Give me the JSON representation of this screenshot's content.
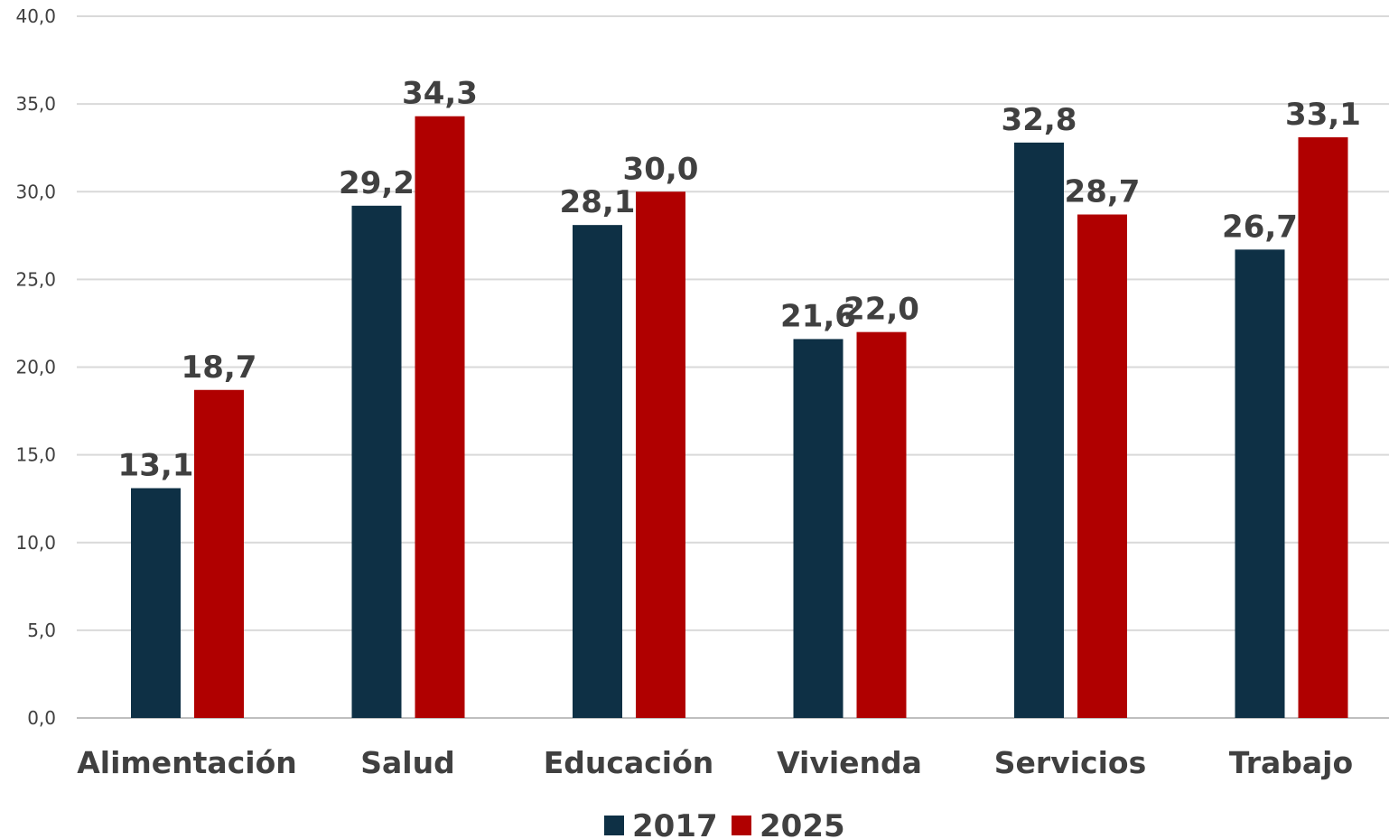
{
  "chart_data": {
    "type": "bar",
    "categories": [
      "Alimentación",
      "Salud",
      "Educación",
      "Vivienda",
      "Servicios",
      "Trabajo"
    ],
    "series": [
      {
        "name": "2017",
        "color": "#0e3045",
        "values": [
          13.1,
          29.2,
          28.1,
          21.6,
          32.8,
          26.7
        ],
        "labels": [
          "13,1",
          "29,2",
          "28,1",
          "21,6",
          "32,8",
          "26,7"
        ]
      },
      {
        "name": "2025",
        "color": "#b00000",
        "values": [
          18.7,
          34.3,
          30.0,
          22.0,
          28.7,
          33.1
        ],
        "labels": [
          "18,7",
          "34,3",
          "30,0",
          "22,0",
          "28,7",
          "33,1"
        ]
      }
    ],
    "ylim": [
      0,
      40
    ],
    "yticks": [
      0,
      5,
      10,
      15,
      20,
      25,
      30,
      35,
      40
    ],
    "ytick_labels": [
      "0,0",
      "5,0",
      "10,0",
      "15,0",
      "20,0",
      "25,0",
      "30,0",
      "35,0",
      "40,0"
    ],
    "grid": true,
    "legend_position": "bottom-center",
    "title": "",
    "xlabel": "",
    "ylabel": ""
  }
}
